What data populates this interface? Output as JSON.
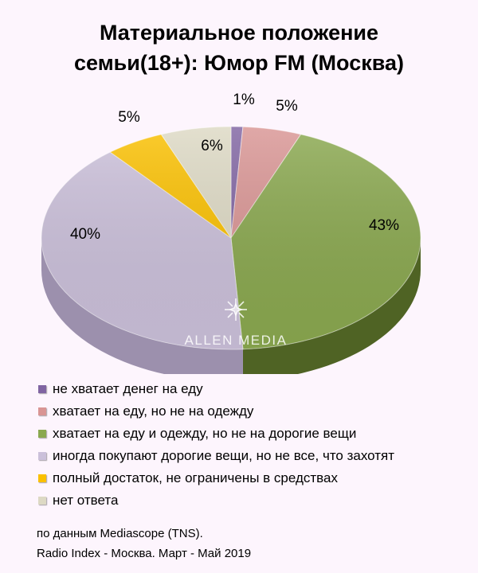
{
  "title_line1": "Материальное положение",
  "title_line2": "семьи(18+): Юмор FM (Москва)",
  "watermark": "ALLEN MEDIA",
  "source_line1": "по данным Mediascope (TNS).",
  "source_line2": "Radio Index - Москва. Март - Май 2019",
  "chart_data": {
    "type": "pie",
    "title": "Материальное положение семьи(18+): Юмор FM (Москва)",
    "unit": "%",
    "slices": [
      {
        "label": "не хватает денег на еду",
        "value": 1,
        "display": "1%",
        "color": "#8064a2",
        "side": "#5b4676"
      },
      {
        "label": "хватает на еду, но не на одежду",
        "value": 5,
        "display": "5%",
        "color": "#d99594",
        "side": "#a36b6a"
      },
      {
        "label": "хватает на еду и одежду, но не на дорогие вещи",
        "value": 43,
        "display": "43%",
        "color": "#8aa84f",
        "side": "#4f6324"
      },
      {
        "label": "иногда покупают дорогие вещи, но не все, что захотят",
        "value": 40,
        "display": "40%",
        "color": "#cbc0da",
        "side": "#9c90ad"
      },
      {
        "label": "полный достаток, не ограничены в средствах",
        "value": 5,
        "display": "5%",
        "color": "#fac000",
        "side": "#b88d00"
      },
      {
        "label": "нет ответа",
        "value": 6,
        "display": "6%",
        "color": "#ddd9c4",
        "side": "#aaa690"
      }
    ],
    "legend_position": "bottom"
  }
}
